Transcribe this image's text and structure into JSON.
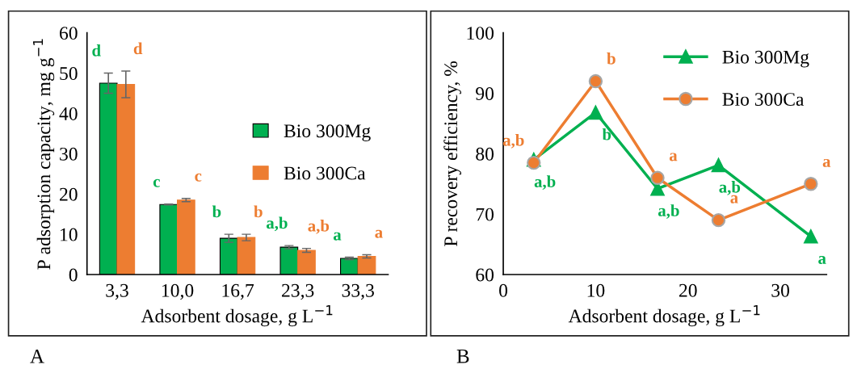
{
  "chart_data": [
    {
      "type": "bar",
      "xlabel": "Adsorbent dosage, g L$^{−1}$",
      "ylabel": "P adsorption capacity, mg g$^{−1}$",
      "categories": [
        "3,3",
        "10,0",
        "16,7",
        "23,3",
        "33,3"
      ],
      "ylim": [
        0,
        60
      ],
      "yticks": [
        0,
        10,
        20,
        30,
        40,
        50,
        60
      ],
      "grid": false,
      "legend": "right",
      "annotations": [
        "A"
      ],
      "series": [
        {
          "name": "Bio 300Mg",
          "color": "#00b050",
          "values": [
            47.5,
            17.4,
            9.0,
            6.8,
            4.0
          ],
          "errors": [
            2.5,
            0.1,
            1.0,
            0.4,
            0.3
          ],
          "value_labels": [
            "d",
            "c",
            "b",
            "a,b",
            "a"
          ]
        },
        {
          "name": "Bio 300Ca",
          "color": "#ed7d31",
          "values": [
            47.2,
            18.5,
            9.2,
            6.0,
            4.5
          ],
          "errors": [
            3.3,
            0.4,
            0.8,
            0.5,
            0.4
          ],
          "value_labels": [
            "d",
            "c",
            "b",
            "a,b",
            "a"
          ]
        }
      ]
    },
    {
      "type": "line",
      "xlabel": "Adsorbent dosage, g L$^{−1}$",
      "ylabel": "P recovery efficiency, %",
      "x": [
        3.3,
        10,
        16.7,
        23.3,
        33.3
      ],
      "xlim": [
        0,
        35
      ],
      "xticks": [
        0,
        10,
        20,
        30
      ],
      "ylim": [
        60,
        100
      ],
      "yticks": [
        60,
        70,
        80,
        90,
        100
      ],
      "grid": false,
      "legend": "top right",
      "annotations": [
        "B"
      ],
      "series": [
        {
          "name": "Bio 300Mg",
          "color": "#00b050",
          "marker": "triangle",
          "values": [
            79,
            86.8,
            74.2,
            78.1,
            66.3
          ],
          "value_labels": [
            "a,b",
            "b",
            "a,b",
            "a,b",
            "a"
          ]
        },
        {
          "name": "Bio 300Ca",
          "color": "#ed7d31",
          "marker": "circle",
          "values": [
            78.5,
            92,
            76,
            69,
            75
          ],
          "value_labels": [
            "a,b",
            "b",
            "a",
            "a",
            "a"
          ]
        }
      ]
    }
  ]
}
